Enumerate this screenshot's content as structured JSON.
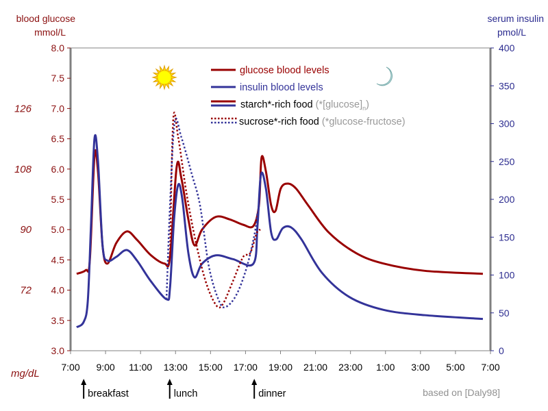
{
  "chart_data": {
    "type": "line",
    "left_axis": {
      "label_line1": "blood glucose",
      "label_line2": "mmol/L",
      "ylim": [
        3.0,
        8.0
      ],
      "ticks": [
        "3.0",
        "3.5",
        "4.0",
        "4.5",
        "5.0",
        "5.5",
        "6.0",
        "6.5",
        "7.0",
        "7.5",
        "8.0"
      ],
      "color": "#8b1010"
    },
    "left_secondary": {
      "unit": "mg/dL",
      "ticks": [
        {
          "label": "72",
          "at": 4.0
        },
        {
          "label": "90",
          "at": 5.0
        },
        {
          "label": "108",
          "at": 6.0
        },
        {
          "label": "126",
          "at": 7.0
        }
      ]
    },
    "right_axis": {
      "label_line1": "serum insulin",
      "label_line2": "pmol/L",
      "ylim": [
        0,
        400
      ],
      "ticks": [
        "0",
        "50",
        "100",
        "150",
        "200",
        "250",
        "300",
        "350",
        "400"
      ],
      "color": "#2b2b8f"
    },
    "x_axis": {
      "range": [
        "7:00",
        "7:00 (next day)"
      ],
      "ticks": [
        "7:00",
        "9:00",
        "11:00",
        "13:00",
        "15:00",
        "17:00",
        "19:00",
        "21:00",
        "23:00",
        "1:00",
        "3:00",
        "5:00",
        "7:00"
      ]
    },
    "series": [
      {
        "name": "glucose blood levels",
        "axis": "left",
        "style": "solid",
        "color": "#990000",
        "x": [
          "07:21",
          "07:52",
          "08:06",
          "08:22",
          "08:34",
          "08:50",
          "09:07",
          "09:37",
          "10:13",
          "10:48",
          "11:35",
          "12:22",
          "12:41",
          "13:04",
          "13:20",
          "13:44",
          "14:05",
          "14:31",
          "15:18",
          "16:05",
          "16:52",
          "17:27",
          "17:46",
          "17:55",
          "18:10",
          "18:28",
          "18:43",
          "19:01",
          "19:25",
          "19:53",
          "20:35",
          "21:46",
          "23:20",
          "00:53",
          "03:14",
          "06:34"
        ],
        "y": [
          4.27,
          4.33,
          4.49,
          6.21,
          5.96,
          4.72,
          4.44,
          4.78,
          4.97,
          4.83,
          4.58,
          4.44,
          4.55,
          6.04,
          5.85,
          5.17,
          4.74,
          5.0,
          5.21,
          5.17,
          5.08,
          5.06,
          5.4,
          6.19,
          5.96,
          5.4,
          5.31,
          5.68,
          5.76,
          5.68,
          5.4,
          4.95,
          4.61,
          4.44,
          4.32,
          4.27
        ]
      },
      {
        "name": "insulin blood levels",
        "axis": "right",
        "style": "solid",
        "color": "#333399",
        "x": [
          "07:21",
          "07:45",
          "07:59",
          "08:10",
          "08:22",
          "08:34",
          "08:50",
          "09:07",
          "09:37",
          "10:13",
          "10:48",
          "11:35",
          "12:29",
          "12:41",
          "12:55",
          "13:09",
          "13:23",
          "13:44",
          "14:05",
          "14:31",
          "15:18",
          "16:17",
          "17:27",
          "17:41",
          "17:53",
          "18:10",
          "18:28",
          "18:45",
          "19:08",
          "19:36",
          "20:12",
          "21:22",
          "22:56",
          "00:53",
          "03:14",
          "06:34"
        ],
        "y": [
          31,
          38,
          65,
          165,
          280,
          251,
          138,
          119,
          124,
          133,
          119,
          92,
          68,
          83,
          174,
          219,
          201,
          129,
          97,
          115,
          126,
          121,
          115,
          165,
          233,
          214,
          156,
          147,
          162,
          163,
          147,
          103,
          71,
          54,
          47,
          42
        ]
      },
      {
        "name": "sucrose*-rich food glucose",
        "axis": "left",
        "style": "dotted",
        "color": "#990000",
        "x": [
          "12:41",
          "12:52",
          "13:09",
          "13:37",
          "14:08",
          "14:43",
          "15:18",
          "15:41",
          "16:17",
          "16:52",
          "17:16",
          "17:39",
          "17:51"
        ],
        "y": [
          4.55,
          6.81,
          6.53,
          5.62,
          4.83,
          4.15,
          3.76,
          3.76,
          4.15,
          4.55,
          4.61,
          4.95,
          5.0
        ]
      },
      {
        "name": "sucrose*-rich food insulin",
        "axis": "right",
        "style": "dotted",
        "color": "#333399",
        "x": [
          "12:29",
          "12:41",
          "12:57",
          "13:20",
          "13:56",
          "14:24",
          "14:55",
          "15:30",
          "15:53",
          "16:29",
          "17:04",
          "17:32",
          "17:41"
        ],
        "y": [
          68,
          192,
          302,
          282,
          233,
          192,
          110,
          65,
          58,
          74,
          110,
          156,
          183
        ]
      }
    ],
    "legend": {
      "placement": "top-center",
      "items": [
        {
          "label": "glucose blood levels",
          "color": "#990000"
        },
        {
          "label": "insulin blood levels",
          "color": "#333399"
        },
        {
          "label": "starch*-rich food",
          "note": "(*[glucose]",
          "sub": "n",
          "note_end": ")"
        },
        {
          "label": "sucrose*-rich food",
          "note": "(*glucose-fructose)"
        }
      ]
    },
    "annotations": [
      {
        "label": "breakfast",
        "time": "07:45"
      },
      {
        "label": "lunch",
        "time": "12:40"
      },
      {
        "label": "dinner",
        "time": "17:30"
      }
    ],
    "icons": {
      "day": "sun-icon",
      "night": "moon-icon"
    },
    "credit": "based on [Daly98]",
    "grid": false
  }
}
